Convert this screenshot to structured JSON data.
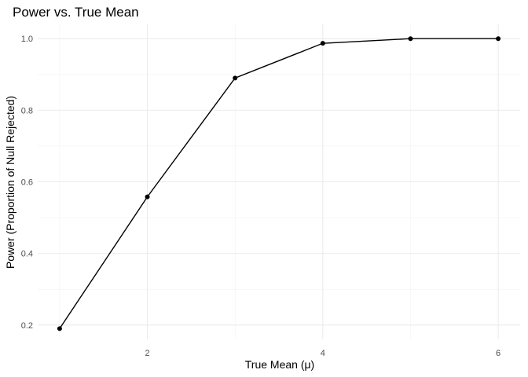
{
  "chart_data": {
    "type": "line",
    "title": "Power vs. True Mean",
    "xlabel": "True Mean (μ)",
    "ylabel": "Power (Proportion of Null Rejected)",
    "x": [
      1,
      2,
      3,
      4,
      5,
      6
    ],
    "series": [
      {
        "values": [
          0.19,
          0.558,
          0.89,
          0.987,
          1.0,
          1.0
        ]
      }
    ],
    "xlim": [
      0.75,
      6.25
    ],
    "ylim": [
      0.16,
      1.04
    ],
    "x_ticks": [
      2,
      4,
      6
    ],
    "x_tick_labels": [
      "2",
      "4",
      "6"
    ],
    "x_minor_ticks": [
      1,
      3,
      5
    ],
    "y_ticks": [
      0.2,
      0.4,
      0.6,
      0.8,
      1.0
    ],
    "y_tick_labels": [
      "0.2",
      "0.4",
      "0.6",
      "0.8",
      "1.0"
    ],
    "y_minor_ticks": [
      0.3,
      0.5,
      0.7,
      0.9
    ],
    "grid": true,
    "line_color": "#000000",
    "point_color": "#000000",
    "grid_color": "#ebebeb"
  }
}
